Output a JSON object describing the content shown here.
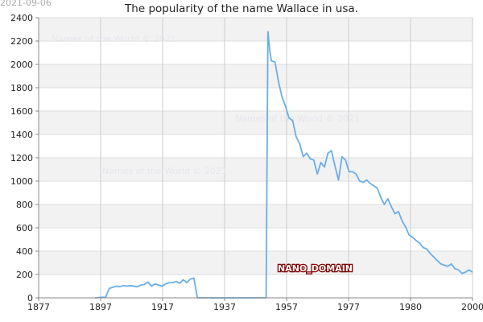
{
  "stamp": "2021-09-06",
  "watermark": "Names of the World © 2021",
  "domain_label": "NANO_DOMAIN",
  "chart_data": {
    "type": "line",
    "title": "The popularity of the name Wallace in usa.",
    "xlabel": "",
    "ylabel": "",
    "xlim": [
      1877,
      2000
    ],
    "ylim": [
      0,
      2400
    ],
    "x_ticks": [
      1877,
      1897,
      1917,
      1937,
      1957,
      1977,
      1980,
      2000
    ],
    "x_tick_labels": [
      "1877",
      "1897",
      "1917",
      "1937",
      "1957",
      "1977",
      "1980",
      "2000"
    ],
    "y_ticks": [
      0,
      200,
      400,
      600,
      800,
      1000,
      1200,
      1400,
      1600,
      1800,
      2000,
      2200,
      2400
    ],
    "grid": true,
    "line_color": "#6aaee8",
    "band_color": "#f2f2f2",
    "series": [
      {
        "x": [
          1893,
          1895,
          1896,
          1897,
          1898,
          1899,
          1900,
          1901,
          1902,
          1903,
          1904,
          1905,
          1906,
          1907,
          1908,
          1909,
          1910,
          1911,
          1912,
          1913,
          1914,
          1915,
          1916,
          1917,
          1918,
          1919,
          1920,
          1921,
          1922,
          1923,
          1930,
          1935,
          1940,
          1941.5,
          1942,
          1942.6,
          1943,
          1944,
          1945,
          1946,
          1947,
          1948,
          1949,
          1950,
          1951,
          1952,
          1953,
          1954,
          1955,
          1956,
          1957,
          1958,
          1959,
          1960,
          1961,
          1962,
          1963,
          1964,
          1965,
          1966,
          1967,
          1968,
          1969,
          1970,
          1971,
          1972,
          1973,
          1974,
          1975,
          1976,
          1977,
          1978,
          1979,
          1980,
          1981,
          1982,
          1983,
          1984,
          1985,
          1986,
          1987,
          1988,
          1989,
          1990,
          1991,
          1992,
          1993,
          1994,
          1995,
          1996,
          1997,
          1998,
          1999,
          2000
        ],
        "y": [
          0,
          5,
          5,
          80,
          90,
          100,
          95,
          105,
          100,
          105,
          100,
          95,
          110,
          115,
          135,
          100,
          120,
          110,
          100,
          120,
          130,
          130,
          140,
          125,
          155,
          130,
          160,
          170,
          0,
          0,
          0,
          0,
          0,
          0,
          2280,
          2100,
          2030,
          2020,
          1850,
          1720,
          1640,
          1540,
          1520,
          1380,
          1320,
          1210,
          1240,
          1190,
          1180,
          1060,
          1160,
          1120,
          1240,
          1260,
          1130,
          1010,
          1210,
          1180,
          1080,
          1080,
          1060,
          1000,
          990,
          1010,
          980,
          960,
          940,
          860,
          800,
          850,
          780,
          720,
          740,
          660,
          610,
          540,
          520,
          490,
          470,
          430,
          420,
          380,
          350,
          320,
          290,
          280,
          270,
          290,
          250,
          240,
          210,
          220,
          240,
          220
        ]
      }
    ]
  }
}
